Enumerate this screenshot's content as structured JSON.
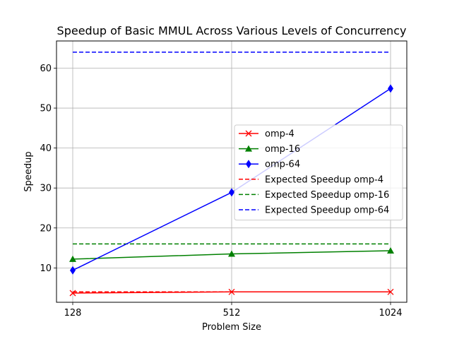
{
  "chart_data": {
    "type": "line",
    "title": "Speedup of Basic MMUL Across Various Levels of Concurrency",
    "xlabel": "Problem Size",
    "ylabel": "Speedup",
    "x": [
      "128",
      "512",
      "1024"
    ],
    "xlim": [
      0,
      2
    ],
    "ylim": [
      1.4,
      66.8
    ],
    "yticks": [
      10,
      20,
      30,
      40,
      50,
      60
    ],
    "grid": true,
    "legend_position": "center-right",
    "series": [
      {
        "name": "omp-4",
        "values": [
          3.7,
          4.0,
          4.0
        ],
        "color": "#ff0000",
        "marker": "x",
        "linestyle": "solid"
      },
      {
        "name": "omp-16",
        "values": [
          12.2,
          13.5,
          14.3
        ],
        "color": "#008000",
        "marker": "triangle",
        "linestyle": "solid"
      },
      {
        "name": "omp-64",
        "values": [
          9.4,
          28.9,
          54.9
        ],
        "color": "#0000ff",
        "marker": "diamond",
        "linestyle": "solid"
      },
      {
        "name": "Expected Speedup omp-4",
        "values": [
          4,
          4,
          4
        ],
        "color": "#ff0000",
        "marker": "none",
        "linestyle": "dashed"
      },
      {
        "name": "Expected Speedup omp-16",
        "values": [
          16,
          16,
          16
        ],
        "color": "#008000",
        "marker": "none",
        "linestyle": "dashed"
      },
      {
        "name": "Expected Speedup omp-64",
        "values": [
          64,
          64,
          64
        ],
        "color": "#0000ff",
        "marker": "none",
        "linestyle": "dashed"
      }
    ]
  }
}
